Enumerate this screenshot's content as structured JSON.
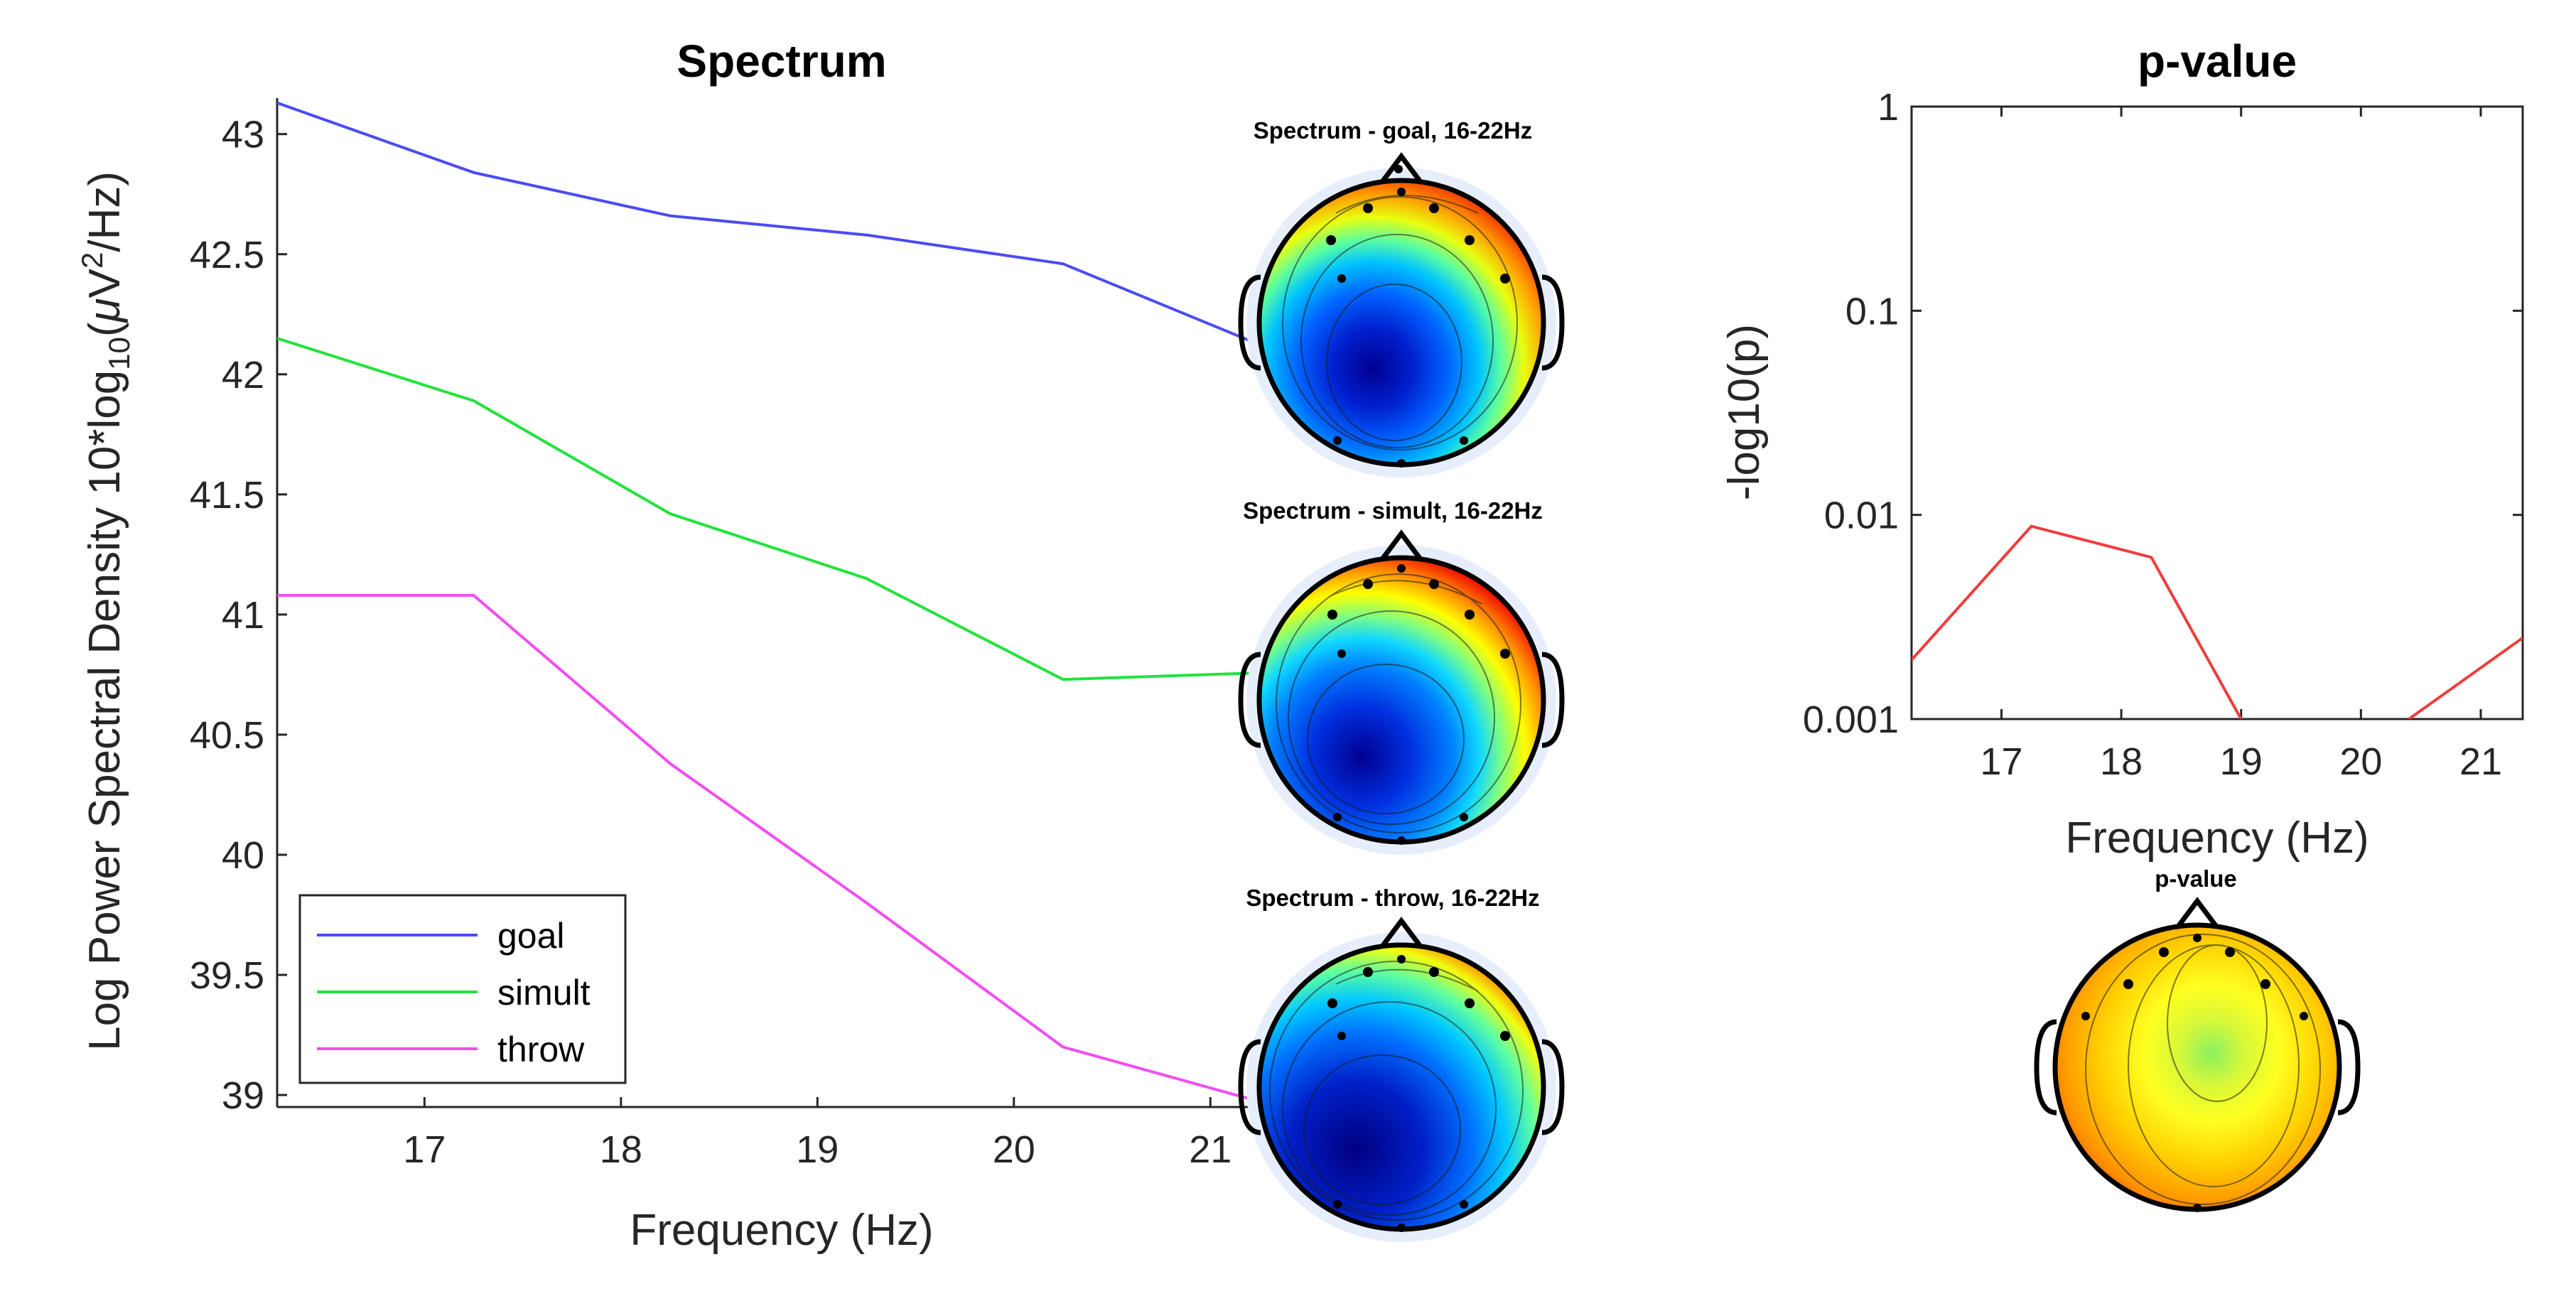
{
  "chart_data": [
    {
      "type": "line",
      "title": "Spectrum",
      "xlabel": "Frequency (Hz)",
      "ylabel_prefix": "Log Power Spectral Density  10*log",
      "ylabel_sub": "10",
      "ylabel_mid": "(",
      "ylabel_mu": "μ",
      "ylabel_v": "V",
      "ylabel_sup": "2",
      "ylabel_end": "/Hz)",
      "xlim": [
        16.25,
        21.35
      ],
      "ylim": [
        38.95,
        43.15
      ],
      "xticks": [
        17,
        18,
        19,
        20,
        21
      ],
      "xtick_labels": [
        "17",
        "18",
        "19",
        "20",
        "21"
      ],
      "yticks": [
        39,
        39.5,
        40,
        40.5,
        41,
        41.5,
        42,
        42.5,
        43
      ],
      "ytick_labels": [
        "39",
        "39.5",
        "40",
        "40.5",
        "41",
        "41.5",
        "42",
        "42.5",
        "43"
      ],
      "x": [
        16.25,
        17.25,
        18.25,
        19.25,
        20.25,
        21.35
      ],
      "series": [
        {
          "name": "goal",
          "color": "#4b4bf5",
          "values": [
            43.13,
            42.84,
            42.66,
            42.58,
            42.46,
            42.09
          ]
        },
        {
          "name": "simult",
          "color": "#22e33c",
          "values": [
            42.15,
            41.89,
            41.42,
            41.15,
            40.73,
            40.76
          ]
        },
        {
          "name": "throw",
          "color": "#f24df2",
          "values": [
            41.08,
            41.08,
            40.38,
            39.8,
            39.2,
            38.95
          ]
        }
      ],
      "legend": "bottom-left"
    },
    {
      "type": "line",
      "title": "p-value",
      "xlabel": "Frequency (Hz)",
      "ylabel": "-log10(p)",
      "yscale": "log",
      "xlim": [
        16.25,
        21.35
      ],
      "ylim": [
        0.001,
        1
      ],
      "xticks": [
        17,
        18,
        19,
        20,
        21
      ],
      "xtick_labels": [
        "17",
        "18",
        "19",
        "20",
        "21"
      ],
      "yticks": [
        0.001,
        0.01,
        0.1,
        1
      ],
      "ytick_labels": [
        "0.001",
        "0.01",
        "0.1",
        "1"
      ],
      "series": [
        {
          "name": "p-value",
          "color": "#f03c3c",
          "segments": [
            [
              [
                16.25,
                0.00195
              ],
              [
                17.25,
                0.0088
              ],
              [
                18.25,
                0.0062
              ],
              [
                19.0,
                0.001
              ]
            ],
            [
              [
                20.4,
                0.001
              ],
              [
                21.35,
                0.0025
              ]
            ]
          ]
        }
      ]
    }
  ],
  "topoplots": [
    {
      "title": "Spectrum - goal, 16-22Hz",
      "pattern": "goal"
    },
    {
      "title": "Spectrum - simult, 16-22Hz",
      "pattern": "simult"
    },
    {
      "title": "Spectrum - throw, 16-22Hz",
      "pattern": "throw"
    },
    {
      "title": "p-value",
      "pattern": "pvalue"
    }
  ],
  "colors": {
    "jet_dark_blue": "#00008f",
    "jet_blue": "#0050ff",
    "jet_cyan": "#00d0ff",
    "jet_green": "#7cff79",
    "jet_yellow": "#ffff00",
    "jet_orange": "#ff8000",
    "jet_red": "#e00000",
    "jet_dark_red": "#800000"
  }
}
